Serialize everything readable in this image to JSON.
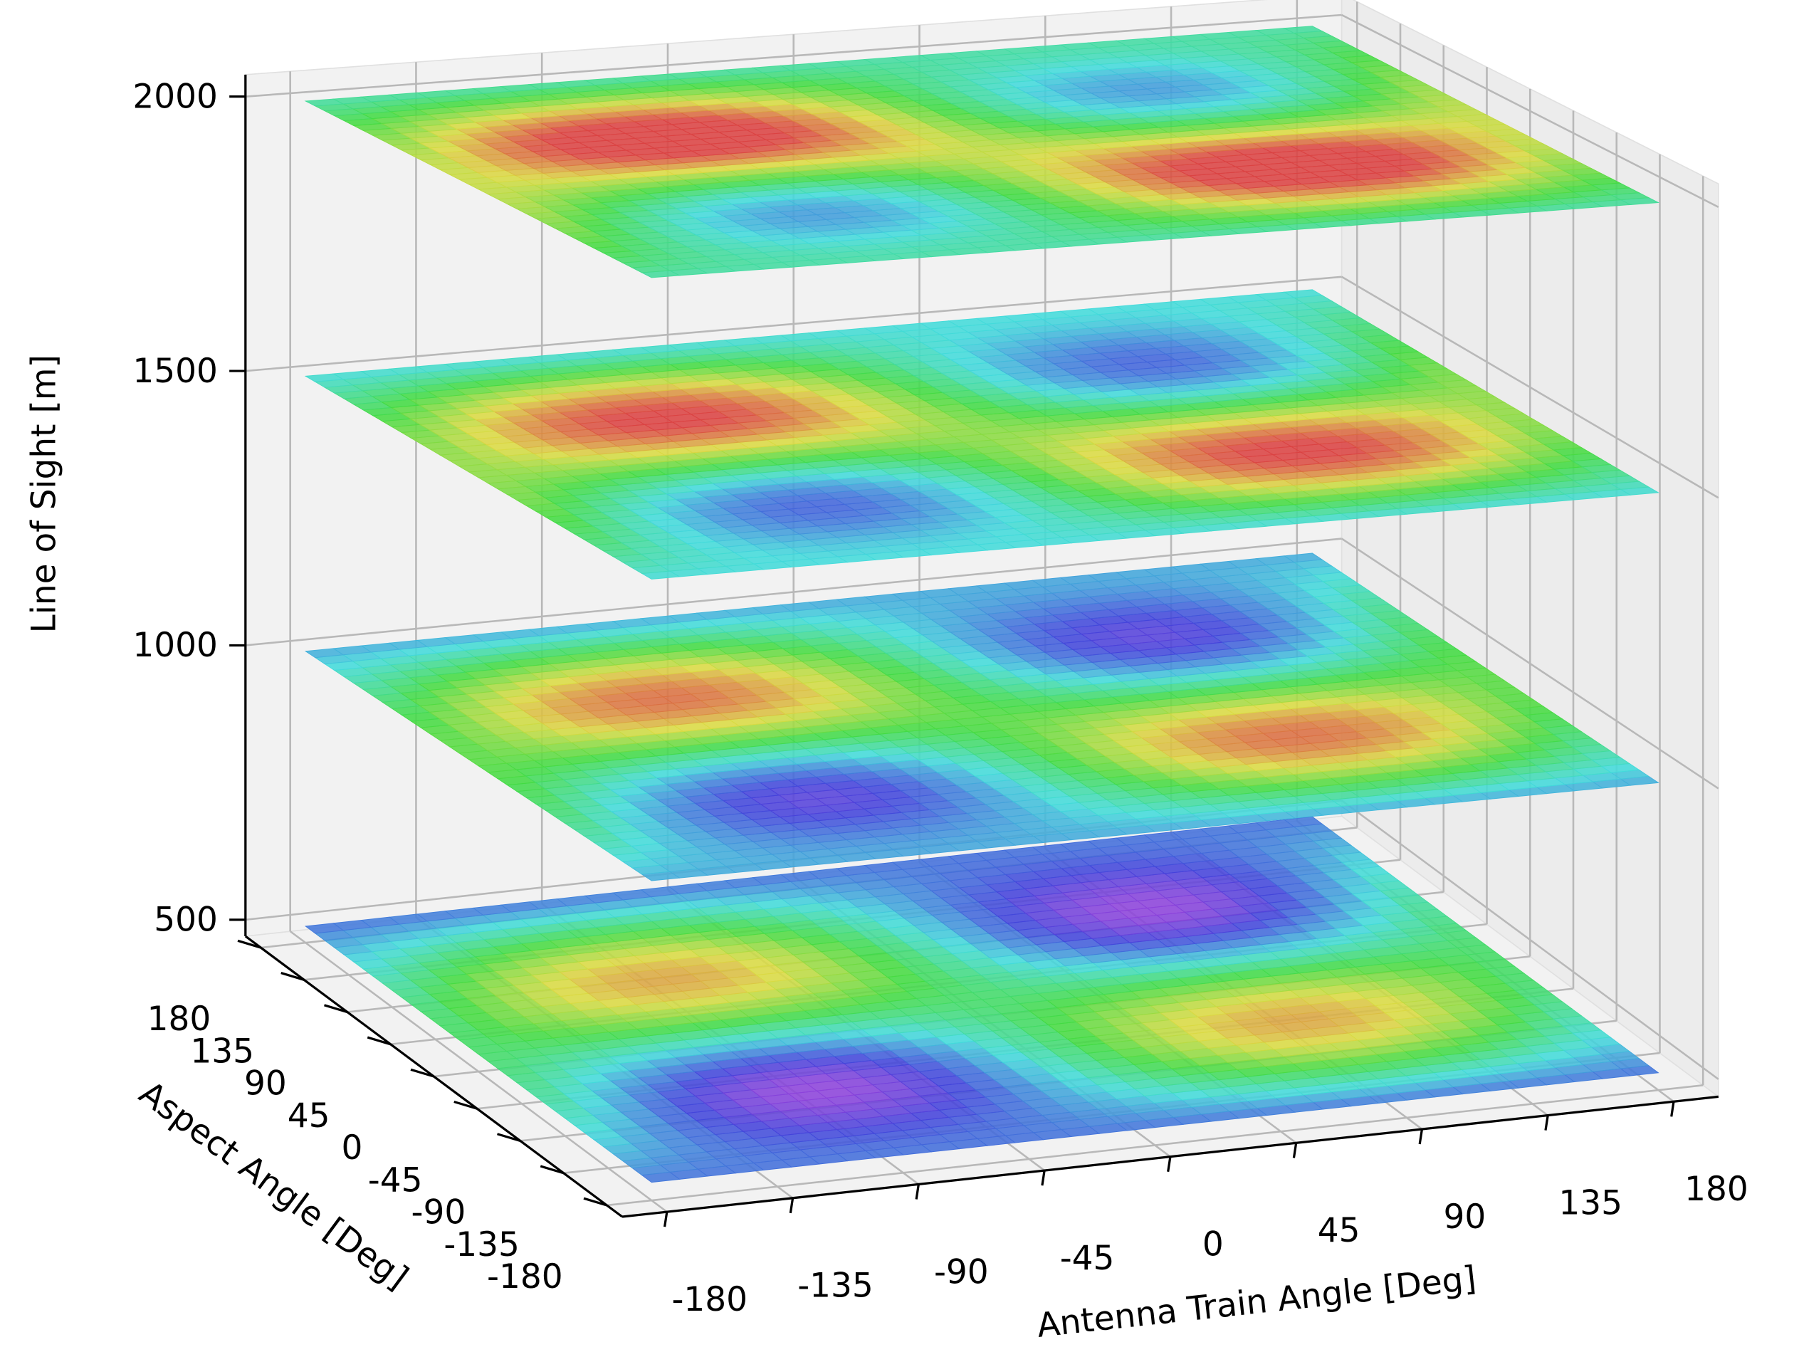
{
  "chart_data": {
    "type": "surface3d",
    "xlabel": "Antenna Train Angle [Deg]",
    "ylabel": "Aspect Angle [Deg]",
    "zlabel": "Line of Sight [m]",
    "xlim": [
      -196,
      196
    ],
    "ylim": [
      -196,
      196
    ],
    "zlim": [
      470,
      2040
    ],
    "xticks": [
      -180,
      -135,
      -90,
      -45,
      0,
      45,
      90,
      135,
      180
    ],
    "yticks": [
      -180,
      -135,
      -90,
      -45,
      0,
      45,
      90,
      135,
      180
    ],
    "zticks": [
      500,
      1000,
      1500,
      2000
    ],
    "levels": [
      500,
      1000,
      1500,
      2000
    ],
    "grid": true
  }
}
